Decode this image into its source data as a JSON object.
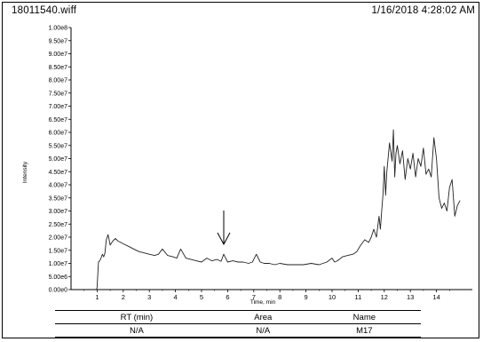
{
  "header": {
    "file_name": "18011540.wiff",
    "timestamp": "1/16/2018 4:28:02 AM"
  },
  "chart_data": {
    "type": "line",
    "title": "",
    "xlabel": "Time, min",
    "ylabel": "Intensity",
    "xlim": [
      0,
      15.2
    ],
    "ylim": [
      0,
      100000000.0
    ],
    "x_ticks": [
      1,
      2,
      3,
      4,
      5,
      6,
      7,
      8,
      9,
      10,
      11,
      12,
      13,
      14
    ],
    "y_ticks": [
      0,
      5000000.0,
      10000000.0,
      15000000.0,
      20000000.0,
      25000000.0,
      30000000.0,
      35000000.0,
      40000000.0,
      45000000.0,
      50000000.0,
      55000000.0,
      60000000.0,
      65000000.0,
      70000000.0,
      75000000.0,
      80000000.0,
      85000000.0,
      90000000.0,
      95000000.0,
      100000000.0
    ],
    "y_tick_labels": [
      "0.00e0",
      "5.00e6",
      "1.00e7",
      "1.50e7",
      "2.00e7",
      "2.50e7",
      "3.00e7",
      "3.50e7",
      "4.00e7",
      "4.50e7",
      "5.00e7",
      "5.50e7",
      "6.00e7",
      "6.50e7",
      "7.00e7",
      "7.50e7",
      "8.00e7",
      "8.50e7",
      "9.00e7",
      "9.50e7",
      "1.00e8"
    ],
    "grid": false,
    "line_color": "#222222",
    "annotation_arrow_x": 5.85,
    "series": [
      {
        "x": [
          0.98,
          1.0,
          1.02,
          1.05,
          1.1,
          1.15,
          1.2,
          1.25,
          1.3,
          1.35,
          1.42,
          1.5,
          1.6,
          1.7,
          1.8,
          1.9,
          2.0,
          2.2,
          2.4,
          2.6,
          2.8,
          3.0,
          3.2,
          3.35,
          3.5,
          3.7,
          3.9,
          4.05,
          4.2,
          4.4,
          4.6,
          4.8,
          5.0,
          5.2,
          5.4,
          5.6,
          5.75,
          5.85,
          6.0,
          6.2,
          6.4,
          6.6,
          6.8,
          6.95,
          7.1,
          7.25,
          7.4,
          7.6,
          7.8,
          8.0,
          8.3,
          8.6,
          8.9,
          9.2,
          9.5,
          9.8,
          10.0,
          10.1,
          10.2,
          10.4,
          10.6,
          10.8,
          10.95,
          11.1,
          11.25,
          11.4,
          11.5,
          11.6,
          11.7,
          11.8,
          11.85,
          11.9,
          11.95,
          12.0,
          12.05,
          12.1,
          12.2,
          12.3,
          12.35,
          12.4,
          12.45,
          12.5,
          12.6,
          12.7,
          12.8,
          12.9,
          13.0,
          13.1,
          13.2,
          13.3,
          13.4,
          13.5,
          13.6,
          13.7,
          13.8,
          13.9,
          14.0,
          14.1,
          14.2,
          14.3,
          14.4,
          14.5,
          14.6,
          14.7,
          14.8,
          14.9
        ],
        "y": [
          0,
          1000000.0,
          5000000.0,
          10500000.0,
          11000000.0,
          12000000.0,
          13500000.0,
          12500000.0,
          14000000.0,
          19000000.0,
          21000000.0,
          17000000.0,
          18500000.0,
          19500000.0,
          18500000.0,
          18000000.0,
          17500000.0,
          16500000.0,
          15500000.0,
          14500000.0,
          14000000.0,
          13500000.0,
          13000000.0,
          13500000.0,
          15500000.0,
          13000000.0,
          12500000.0,
          12000000.0,
          15500000.0,
          12000000.0,
          11500000.0,
          11000000.0,
          10500000.0,
          12000000.0,
          11000000.0,
          11500000.0,
          10800000.0,
          13500000.0,
          10500000.0,
          11000000.0,
          10500000.0,
          10500000.0,
          10000000.0,
          10500000.0,
          13500000.0,
          10500000.0,
          10000000.0,
          10000000.0,
          9500000.0,
          10000000.0,
          9500000.0,
          9500000.0,
          9500000.0,
          10000000.0,
          9500000.0,
          10500000.0,
          12000000.0,
          10500000.0,
          11000000.0,
          12500000.0,
          13000000.0,
          13500000.0,
          14500000.0,
          17000000.0,
          19000000.0,
          18000000.0,
          20000000.0,
          23000000.0,
          20000000.0,
          28000000.0,
          23000000.0,
          30000000.0,
          36000000.0,
          47000000.0,
          36000000.0,
          45000000.0,
          56000000.0,
          49000000.0,
          61000000.0,
          43000000.0,
          52000000.0,
          55000000.0,
          48000000.0,
          53000000.0,
          42000000.0,
          50000000.0,
          46000000.0,
          52000000.0,
          43000000.0,
          50000000.0,
          47000000.0,
          54000000.0,
          44000000.0,
          46000000.0,
          43000000.0,
          58000000.0,
          50000000.0,
          35000000.0,
          31000000.0,
          33000000.0,
          30000000.0,
          39000000.0,
          42000000.0,
          28000000.0,
          32000000.0,
          34000000.0
        ]
      }
    ]
  },
  "table": {
    "headers": [
      "RT (min)",
      "Area",
      "Name"
    ],
    "rows": [
      [
        "N/A",
        "N/A",
        "M17"
      ]
    ]
  }
}
